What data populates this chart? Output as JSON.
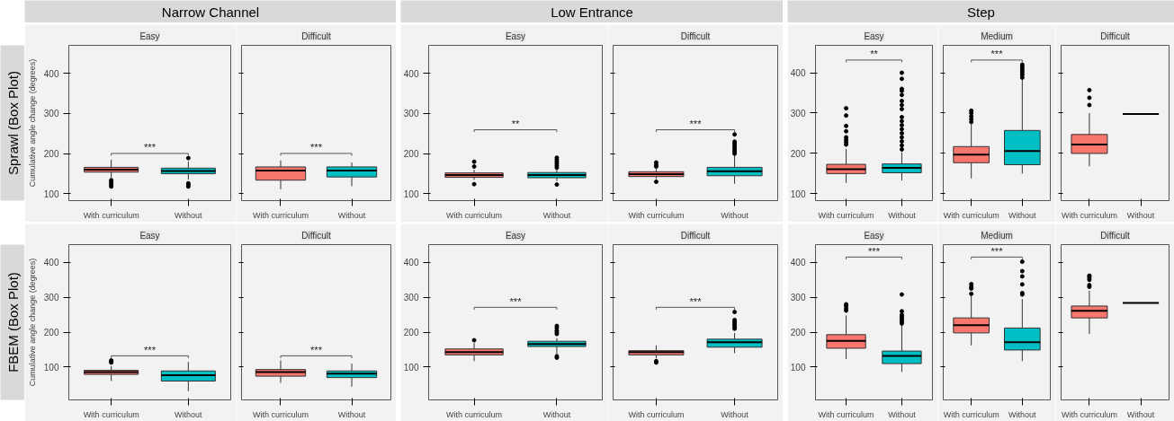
{
  "chart_data": [
    {
      "type": "other",
      "title": "Narrow Channel"
    },
    {
      "type": "other",
      "title": "Low Entrance"
    },
    {
      "type": "other",
      "title": "Step"
    },
    {
      "type": "other",
      "title": "Sprawl (Box Plot)"
    },
    {
      "type": "box",
      "title": "Easy",
      "ylabel": "Cumulative angle change (degrees)",
      "categories": [
        "With curriculum",
        "Without"
      ],
      "colors": [
        "#f8766d",
        "#00bfc4"
      ],
      "ylim": [
        83,
        470
      ],
      "yticks": [
        100,
        200,
        300,
        400
      ],
      "annotations": [
        "***"
      ],
      "boxes": [
        {
          "low": 140,
          "q1": 154,
          "median": 160,
          "q3": 166,
          "high": 185,
          "outliers": [
            118,
            122,
            126,
            130,
            134
          ]
        },
        {
          "low": 135,
          "q1": 150,
          "median": 157,
          "q3": 164,
          "high": 181,
          "outliers": [
            118,
            122,
            126,
            189
          ]
        }
      ]
    },
    {
      "type": "box",
      "title": "Difficult",
      "categories": [
        "With curriculum",
        "Without"
      ],
      "colors": [
        "#f8766d",
        "#00bfc4"
      ],
      "ylim": [
        83,
        470
      ],
      "yticks": [
        100,
        200,
        300,
        400
      ],
      "tick_labels": "x",
      "annotations": [
        "***"
      ],
      "boxes": [
        {
          "low": 111,
          "q1": 134,
          "median": 158,
          "q3": 167,
          "high": 183
        },
        {
          "low": 119,
          "q1": 142,
          "median": 158,
          "q3": 167,
          "high": 178
        }
      ]
    },
    {
      "type": "box",
      "title": "Easy",
      "categories": [
        "With curriculum",
        "Without"
      ],
      "colors": [
        "#f8766d",
        "#00bfc4"
      ],
      "ylim": [
        83,
        470
      ],
      "yticks": [
        100,
        200,
        300,
        400
      ],
      "annotations": [
        "**"
      ],
      "boxes": [
        {
          "low": 135,
          "q1": 141,
          "median": 147,
          "q3": 152,
          "high": 160,
          "outliers": [
            124,
            168,
            180
          ]
        },
        {
          "low": 132,
          "q1": 140,
          "median": 147,
          "q3": 153,
          "high": 160,
          "outliers": [
            123,
            165,
            170,
            175,
            180,
            185,
            190
          ]
        }
      ]
    },
    {
      "type": "box",
      "title": "Difficult",
      "categories": [
        "With curriculum",
        "Without"
      ],
      "colors": [
        "#f8766d",
        "#00bfc4"
      ],
      "ylim": [
        83,
        470
      ],
      "yticks": [
        100,
        200,
        300,
        400
      ],
      "tick_labels": "x",
      "annotations": [
        "***"
      ],
      "boxes": [
        {
          "low": 137,
          "q1": 143,
          "median": 149,
          "q3": 155,
          "high": 162,
          "outliers": [
            130,
            168,
            172,
            178
          ]
        },
        {
          "low": 125,
          "q1": 145,
          "median": 156,
          "q3": 166,
          "high": 196,
          "outliers": [
            200,
            205,
            210,
            215,
            220,
            225,
            230,
            248
          ]
        }
      ]
    },
    {
      "type": "box",
      "title": "Easy",
      "categories": [
        "With curriculum",
        "Without"
      ],
      "colors": [
        "#f8766d",
        "#00bfc4"
      ],
      "ylim": [
        83,
        468
      ],
      "yticks": [
        100,
        200,
        300,
        400
      ],
      "annotations": [
        "**"
      ],
      "boxes": [
        {
          "low": 127,
          "q1": 150,
          "median": 161,
          "q3": 173,
          "high": 211,
          "outliers": [
            222,
            228,
            234,
            240,
            255,
            268,
            294,
            312
          ]
        },
        {
          "low": 133,
          "q1": 152,
          "median": 164,
          "q3": 174,
          "high": 203,
          "outliers": [
            210,
            220,
            230,
            240,
            250,
            260,
            270,
            280,
            290,
            310,
            320,
            330,
            345,
            355,
            360,
            385,
            400
          ]
        }
      ]
    },
    {
      "type": "box",
      "title": "Medium",
      "categories": [
        "With curriculum",
        "Without"
      ],
      "colors": [
        "#f8766d",
        "#00bfc4"
      ],
      "ylim": [
        83,
        468
      ],
      "yticks": [
        100,
        200,
        300,
        400
      ],
      "tick_labels": "x",
      "annotations": [
        "***"
      ],
      "boxes": [
        {
          "low": 138,
          "q1": 177,
          "median": 197,
          "q3": 217,
          "high": 273,
          "outliers": [
            278,
            285,
            292,
            300,
            306
          ]
        },
        {
          "low": 150,
          "q1": 172,
          "median": 206,
          "q3": 257,
          "high": 383,
          "outliers": [
            388,
            395,
            400,
            405,
            410,
            415,
            420
          ]
        }
      ]
    },
    {
      "type": "box",
      "title": "Difficult",
      "categories": [
        "With curriculum",
        "Without"
      ],
      "colors": [
        "#f8766d",
        "#333333"
      ],
      "ylim": [
        83,
        468
      ],
      "yticks": [
        100,
        200,
        300,
        400
      ],
      "tick_labels": "x",
      "boxes": [
        {
          "low": 168,
          "q1": 200,
          "median": 222,
          "q3": 247,
          "high": 300,
          "outliers": [
            320,
            338,
            357
          ]
        },
        {
          "low": 298,
          "q1": 298,
          "median": 298,
          "q3": 298,
          "high": 298
        }
      ]
    },
    {
      "type": "other",
      "title": "FBEM (Box Plot)"
    },
    {
      "type": "box",
      "title": "Easy",
      "ylabel": "Cumulative angle change (degrees)",
      "categories": [
        "With curriculum",
        "Without"
      ],
      "colors": [
        "#f8766d",
        "#00bfc4"
      ],
      "ylim": [
        6,
        451
      ],
      "yticks": [
        100,
        200,
        300,
        400
      ],
      "annotations": [
        "***"
      ],
      "boxes": [
        {
          "low": 60,
          "q1": 79,
          "median": 86,
          "q3": 91,
          "high": 103,
          "outliers": [
            113,
            116,
            119
          ]
        },
        {
          "low": 31,
          "q1": 60,
          "median": 77,
          "q3": 89,
          "high": 115
        }
      ]
    },
    {
      "type": "box",
      "title": "Difficult",
      "categories": [
        "With curriculum",
        "Without"
      ],
      "colors": [
        "#f8766d",
        "#00bfc4"
      ],
      "ylim": [
        6,
        451
      ],
      "yticks": [
        100,
        200,
        300,
        400
      ],
      "tick_labels": "x",
      "annotations": [
        "***"
      ],
      "boxes": [
        {
          "low": 55,
          "q1": 74,
          "median": 86,
          "q3": 93,
          "high": 119
        },
        {
          "low": 44,
          "q1": 70,
          "median": 81,
          "q3": 89,
          "high": 110
        }
      ]
    },
    {
      "type": "box",
      "title": "Easy",
      "categories": [
        "With curriculum",
        "Without"
      ],
      "colors": [
        "#f8766d",
        "#00bfc4"
      ],
      "ylim": [
        6,
        451
      ],
      "yticks": [
        100,
        200,
        300,
        400
      ],
      "annotations": [
        "***"
      ],
      "boxes": [
        {
          "low": 117,
          "q1": 135,
          "median": 143,
          "q3": 152,
          "high": 169,
          "outliers": [
            177
          ]
        },
        {
          "low": 135,
          "q1": 159,
          "median": 166,
          "q3": 174,
          "high": 183,
          "outliers": [
            127,
            131,
            195,
            200,
            205,
            212,
            218
          ]
        }
      ]
    },
    {
      "type": "box",
      "title": "Difficult",
      "categories": [
        "With curriculum",
        "Without"
      ],
      "colors": [
        "#f8766d",
        "#00bfc4"
      ],
      "ylim": [
        6,
        451
      ],
      "yticks": [
        100,
        200,
        300,
        400
      ],
      "tick_labels": "x",
      "annotations": [
        "***"
      ],
      "boxes": [
        {
          "low": 125,
          "q1": 135,
          "median": 143,
          "q3": 147,
          "high": 162,
          "outliers": [
            113,
            117
          ]
        },
        {
          "low": 140,
          "q1": 157,
          "median": 171,
          "q3": 180,
          "high": 198,
          "outliers": [
            210,
            215,
            220,
            225,
            230,
            235,
            258
          ]
        }
      ]
    },
    {
      "type": "box",
      "title": "Easy",
      "categories": [
        "With curriculum",
        "Without"
      ],
      "colors": [
        "#f8766d",
        "#00bfc4"
      ],
      "ylim": [
        6,
        451
      ],
      "yticks": [
        100,
        200,
        300,
        400
      ],
      "annotations": [
        "***"
      ],
      "boxes": [
        {
          "low": 123,
          "q1": 154,
          "median": 175,
          "q3": 193,
          "high": 248,
          "outliers": [
            262,
            268,
            275,
            280
          ]
        },
        {
          "low": 86,
          "q1": 110,
          "median": 132,
          "q3": 146,
          "high": 222,
          "outliers": [
            225,
            230,
            235,
            240,
            245,
            250,
            260,
            308
          ]
        }
      ]
    },
    {
      "type": "box",
      "title": "Medium",
      "categories": [
        "With curriculum",
        "Without"
      ],
      "colors": [
        "#f8766d",
        "#00bfc4"
      ],
      "ylim": [
        6,
        451
      ],
      "yticks": [
        100,
        200,
        300,
        400
      ],
      "tick_labels": "x",
      "annotations": [
        "***"
      ],
      "boxes": [
        {
          "low": 162,
          "q1": 198,
          "median": 220,
          "q3": 241,
          "high": 307,
          "outliers": [
            310,
            325,
            330,
            338
          ]
        },
        {
          "low": 117,
          "q1": 149,
          "median": 171,
          "q3": 212,
          "high": 295,
          "outliers": [
            308,
            312,
            337,
            360,
            375,
            402
          ]
        }
      ]
    },
    {
      "type": "box",
      "title": "Difficult",
      "categories": [
        "With curriculum",
        "Without"
      ],
      "colors": [
        "#f8766d",
        "#333333"
      ],
      "ylim": [
        6,
        451
      ],
      "yticks": [
        100,
        200,
        300,
        400
      ],
      "tick_labels": "x",
      "boxes": [
        {
          "low": 195,
          "q1": 241,
          "median": 261,
          "q3": 275,
          "high": 319,
          "outliers": [
            330,
            335,
            350,
            355,
            360,
            362
          ]
        },
        {
          "low": 284,
          "q1": 284,
          "median": 284,
          "q3": 284,
          "high": 284
        }
      ]
    }
  ]
}
